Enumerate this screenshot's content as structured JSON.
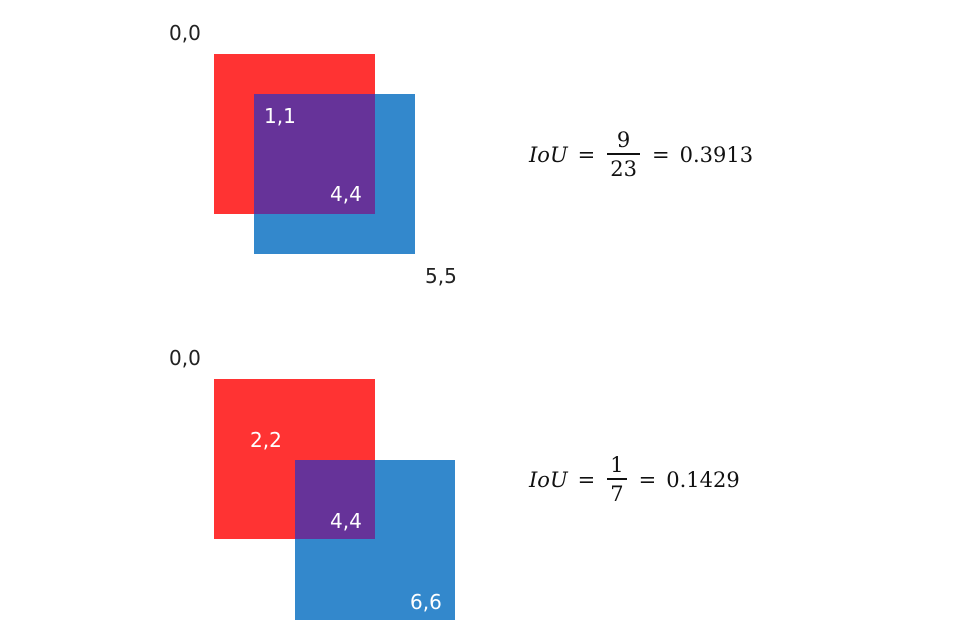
{
  "colors": {
    "red_box": "#ff3333",
    "blue_box": "#3388cc",
    "overlap": "#663399"
  },
  "example1": {
    "label_origin": "0,0",
    "label_inter_tl": "1,1",
    "label_inter_br": "4,4",
    "label_blue_br": "5,5",
    "formula": {
      "lhs": "IoU",
      "eq": "=",
      "numerator": "9",
      "denominator": "23",
      "result": "0.3913"
    }
  },
  "example2": {
    "label_origin": "0,0",
    "label_red_tl": "2,2",
    "label_inter_br": "4,4",
    "label_blue_br": "6,6",
    "formula": {
      "lhs": "IoU",
      "eq": "=",
      "numerator": "1",
      "denominator": "7",
      "result": "0.1429"
    }
  }
}
